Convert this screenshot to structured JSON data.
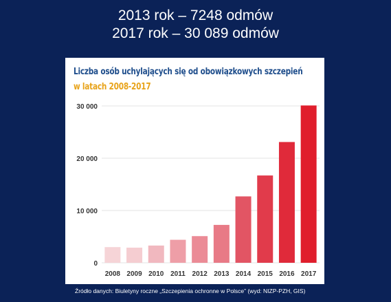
{
  "headline": {
    "line1": "2013 rok – 7248 odmów",
    "line2": "2017 rok – 30 089 odmów"
  },
  "source_note": "Źródło danych: Biuletyny roczne „Szczepienia ochronne w Polsce” (wyd: NIZP-PZH, GIS)",
  "chart_data": {
    "type": "bar",
    "title": "Liczba osób uchylających się od obowiązkowych szczepień",
    "subtitle": "w latach 2008-2017",
    "categories": [
      "2008",
      "2009",
      "2010",
      "2011",
      "2012",
      "2013",
      "2014",
      "2015",
      "2016",
      "2017"
    ],
    "values": [
      3000,
      2900,
      3300,
      4400,
      5100,
      7248,
      12700,
      16700,
      23100,
      30089
    ],
    "ylim": [
      0,
      30000
    ],
    "yticks": [
      0,
      10000,
      20000,
      30000
    ],
    "ytick_labels": [
      "0",
      "10 000",
      "20 000",
      "30 000"
    ],
    "grid": true,
    "bar_colors": [
      "#f6d4d7",
      "#f5cdd1",
      "#f1b8bf",
      "#ee9ea7",
      "#eb8b96",
      "#e87a86",
      "#e25564",
      "#e13b4b",
      "#e02a3a",
      "#e01e2c"
    ]
  }
}
